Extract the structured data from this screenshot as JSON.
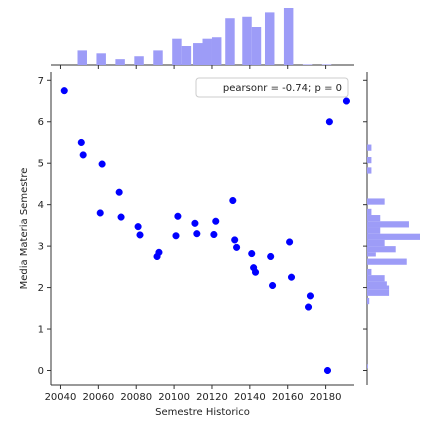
{
  "chart_data": {
    "type": "scatter",
    "subtype": "jointplot",
    "title": "",
    "xlabel": "Semestre Historico",
    "ylabel": "Media Materia Semestre",
    "xlim": [
      20035,
      20195
    ],
    "ylim": [
      -0.35,
      7.2
    ],
    "xticks": [
      20040,
      20060,
      20080,
      20100,
      20120,
      20140,
      20160,
      20180
    ],
    "yticks": [
      0,
      1,
      2,
      3,
      4,
      5,
      6,
      7
    ],
    "legend": {
      "text": "pearsonr = -0.74; p = 0",
      "position": "top-right"
    },
    "point_color": "#0000ff",
    "hist_color": "#9d9cf7",
    "grid": false,
    "points": [
      {
        "x": 20042,
        "y": 6.75
      },
      {
        "x": 20051,
        "y": 5.5
      },
      {
        "x": 20052,
        "y": 5.2
      },
      {
        "x": 20061,
        "y": 3.8
      },
      {
        "x": 20062,
        "y": 4.98
      },
      {
        "x": 20071,
        "y": 4.3
      },
      {
        "x": 20072,
        "y": 3.7
      },
      {
        "x": 20081,
        "y": 3.47
      },
      {
        "x": 20082,
        "y": 3.27
      },
      {
        "x": 20091,
        "y": 2.75
      },
      {
        "x": 20092,
        "y": 2.85
      },
      {
        "x": 20101,
        "y": 3.25
      },
      {
        "x": 20102,
        "y": 3.72
      },
      {
        "x": 20111,
        "y": 3.55
      },
      {
        "x": 20112,
        "y": 3.3
      },
      {
        "x": 20121,
        "y": 3.28
      },
      {
        "x": 20122,
        "y": 3.6
      },
      {
        "x": 20131,
        "y": 4.1
      },
      {
        "x": 20132,
        "y": 3.15
      },
      {
        "x": 20133,
        "y": 2.97
      },
      {
        "x": 20141,
        "y": 2.82
      },
      {
        "x": 20142,
        "y": 2.48
      },
      {
        "x": 20143,
        "y": 2.37
      },
      {
        "x": 20151,
        "y": 2.75
      },
      {
        "x": 20152,
        "y": 2.05
      },
      {
        "x": 20161,
        "y": 3.1
      },
      {
        "x": 20162,
        "y": 2.25
      },
      {
        "x": 20171,
        "y": 1.53
      },
      {
        "x": 20172,
        "y": 1.8
      },
      {
        "x": 20181,
        "y": 0.0
      },
      {
        "x": 20182,
        "y": 6.0
      },
      {
        "x": 20191,
        "y": 6.5
      }
    ],
    "x_marginal_bins": [
      {
        "x0": 20042,
        "x1": 20047,
        "count": 0
      },
      {
        "x0": 20049,
        "x1": 20054,
        "count": 5
      },
      {
        "x0": 20059,
        "x1": 20064,
        "count": 4
      },
      {
        "x0": 20069,
        "x1": 20074,
        "count": 2
      },
      {
        "x0": 20079,
        "x1": 20084,
        "count": 3
      },
      {
        "x0": 20089,
        "x1": 20094,
        "count": 5
      },
      {
        "x0": 20099,
        "x1": 20104,
        "count": 9
      },
      {
        "x0": 20104,
        "x1": 20109,
        "count": 6.5
      },
      {
        "x0": 20110,
        "x1": 20115,
        "count": 7.5
      },
      {
        "x0": 20115,
        "x1": 20120,
        "count": 9
      },
      {
        "x0": 20120,
        "x1": 20125,
        "count": 9.5
      },
      {
        "x0": 20127,
        "x1": 20132,
        "count": 16
      },
      {
        "x0": 20136,
        "x1": 20141,
        "count": 16.5
      },
      {
        "x0": 20141,
        "x1": 20146,
        "count": 13
      },
      {
        "x0": 20148,
        "x1": 20153,
        "count": 18
      },
      {
        "x0": 20158,
        "x1": 20163,
        "count": 19.5
      },
      {
        "x0": 20168,
        "x1": 20173,
        "count": 0.2
      },
      {
        "x0": 20178,
        "x1": 20183,
        "count": 0.2
      }
    ],
    "y_marginal_bins": [
      {
        "y0": 5.3,
        "y1": 5.45,
        "count": 1
      },
      {
        "y0": 5.0,
        "y1": 5.15,
        "count": 1
      },
      {
        "y0": 4.75,
        "y1": 4.9,
        "count": 1
      },
      {
        "y0": 4.0,
        "y1": 4.15,
        "count": 4
      },
      {
        "y0": 3.75,
        "y1": 3.9,
        "count": 1
      },
      {
        "y0": 3.6,
        "y1": 3.75,
        "count": 3
      },
      {
        "y0": 3.45,
        "y1": 3.6,
        "count": 9.5
      },
      {
        "y0": 3.3,
        "y1": 3.45,
        "count": 3
      },
      {
        "y0": 3.15,
        "y1": 3.3,
        "count": 12
      },
      {
        "y0": 3.0,
        "y1": 3.15,
        "count": 4
      },
      {
        "y0": 2.85,
        "y1": 3.0,
        "count": 6.5
      },
      {
        "y0": 2.75,
        "y1": 2.85,
        "count": 2
      },
      {
        "y0": 2.55,
        "y1": 2.7,
        "count": 9
      },
      {
        "y0": 2.3,
        "y1": 2.45,
        "count": 1
      },
      {
        "y0": 2.15,
        "y1": 2.3,
        "count": 4
      },
      {
        "y0": 2.05,
        "y1": 2.15,
        "count": 4.5
      },
      {
        "y0": 1.95,
        "y1": 2.05,
        "count": 5
      },
      {
        "y0": 1.8,
        "y1": 1.95,
        "count": 5
      },
      {
        "y0": 1.6,
        "y1": 1.75,
        "count": 0.5
      },
      {
        "y0": 0.05,
        "y1": 0.15,
        "count": 0.2
      }
    ]
  }
}
